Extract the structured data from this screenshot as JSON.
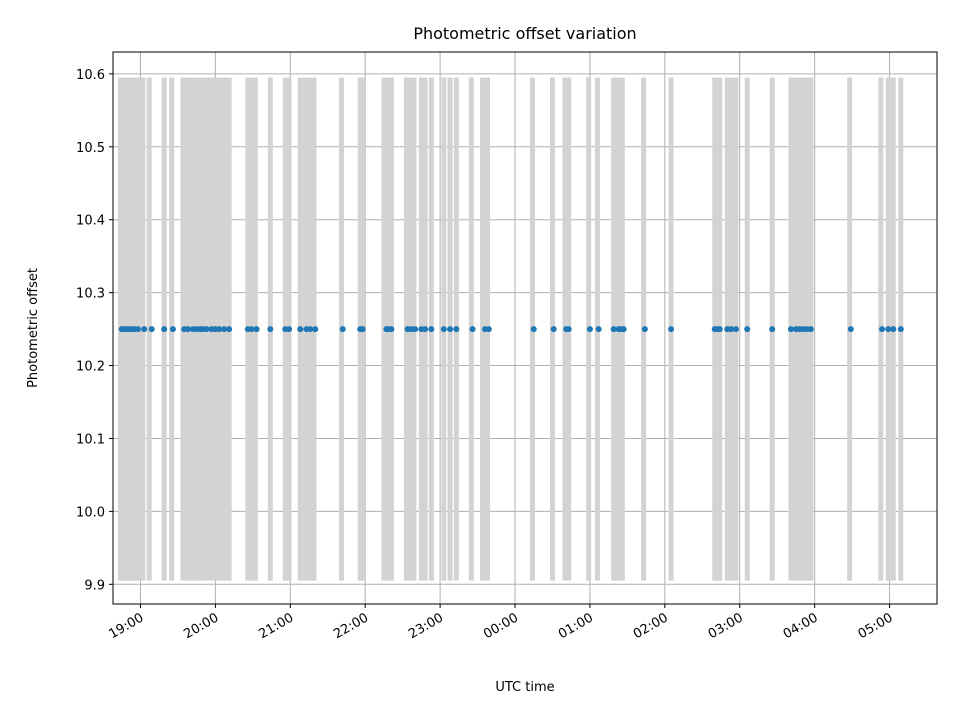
{
  "chart_data": {
    "type": "scatter",
    "title": "Photometric offset variation",
    "xlabel": "UTC time",
    "ylabel": "Photometric offset",
    "grid": true,
    "xlim": [
      "18:38",
      "05:38"
    ],
    "ylim": [
      9.873,
      10.63
    ],
    "x_ticks": [
      "19:00",
      "20:00",
      "21:00",
      "22:00",
      "23:00",
      "00:00",
      "01:00",
      "02:00",
      "03:00",
      "04:00",
      "05:00"
    ],
    "y_ticks": [
      "9.9",
      "10.0",
      "10.1",
      "10.2",
      "10.3",
      "10.4",
      "10.5",
      "10.6"
    ],
    "series": [
      {
        "marker": "point",
        "color": "#1f77b4",
        "y": 10.25,
        "x": [
          "18:45",
          "18:47",
          "18:49",
          "18:51",
          "18:53",
          "18:55",
          "18:58",
          "19:03",
          "19:09",
          "19:19",
          "19:26",
          "19:35",
          "19:38",
          "19:42",
          "19:45",
          "19:48",
          "19:50",
          "19:53",
          "19:57",
          "20:00",
          "20:03",
          "20:07",
          "20:11",
          "20:26",
          "20:29",
          "20:33",
          "20:44",
          "20:56",
          "20:59",
          "21:08",
          "21:13",
          "21:16",
          "21:20",
          "21:42",
          "21:56",
          "21:58",
          "22:17",
          "22:19",
          "22:21",
          "22:34",
          "22:37",
          "22:40",
          "22:45",
          "22:48",
          "22:53",
          "23:03",
          "23:08",
          "23:13",
          "23:26",
          "23:36",
          "23:39",
          "24:15",
          "24:31",
          "24:41",
          "24:43",
          "25:00",
          "25:07",
          "25:19",
          "25:23",
          "25:25",
          "25:27",
          "25:44",
          "26:05",
          "26:40",
          "26:42",
          "26:44",
          "26:50",
          "26:53",
          "26:57",
          "27:06",
          "27:26",
          "27:41",
          "27:45",
          "27:48",
          "27:51",
          "27:54",
          "27:57",
          "28:29",
          "28:54",
          "28:59",
          "29:03",
          "29:09"
        ]
      }
    ],
    "bands": {
      "color": "#d3d3d3",
      "y_range": [
        9.905,
        10.595
      ],
      "x": [
        "18:44",
        "18:46",
        "18:48",
        "18:50",
        "18:52",
        "18:54",
        "18:56",
        "18:58",
        "19:02",
        "19:07",
        "19:19",
        "19:25",
        "19:34",
        "19:37",
        "19:40",
        "19:43",
        "19:46",
        "19:49",
        "19:52",
        "19:56",
        "20:00",
        "20:03",
        "20:07",
        "20:11",
        "20:26",
        "20:29",
        "20:32",
        "20:44",
        "20:56",
        "20:59",
        "21:08",
        "21:12",
        "21:15",
        "21:19",
        "21:41",
        "21:56",
        "21:58",
        "22:15",
        "22:18",
        "22:21",
        "22:33",
        "22:36",
        "22:39",
        "22:45",
        "22:48",
        "22:53",
        "23:03",
        "23:08",
        "23:13",
        "23:25",
        "23:34",
        "23:38",
        "24:14",
        "24:30",
        "24:40",
        "24:43",
        "24:59",
        "25:06",
        "25:19",
        "25:22",
        "25:26",
        "25:43",
        "26:05",
        "26:40",
        "26:42",
        "26:44",
        "26:50",
        "26:53",
        "26:57",
        "27:06",
        "27:26",
        "27:41",
        "27:45",
        "27:48",
        "27:51",
        "27:54",
        "27:57",
        "28:28",
        "28:53",
        "28:59",
        "29:03",
        "29:09"
      ]
    }
  }
}
